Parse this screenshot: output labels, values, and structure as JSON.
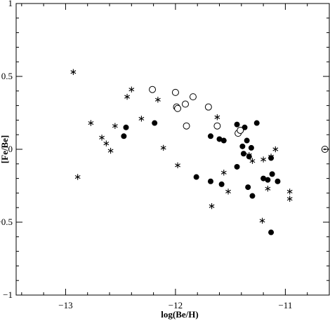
{
  "chart_data": {
    "type": "scatter",
    "title": "",
    "xlabel": "log(Be/H)",
    "ylabel": "[Fe/Be]",
    "xlim": [
      -13.45,
      -10.6
    ],
    "ylim": [
      -1,
      1
    ],
    "x_ticks": [
      {
        "value": -13,
        "label": "−13"
      },
      {
        "value": -12,
        "label": "−12"
      },
      {
        "value": -11,
        "label": "−11"
      }
    ],
    "y_ticks": [
      {
        "value": 1,
        "label": "1"
      },
      {
        "value": 0.5,
        "label": "0.5"
      },
      {
        "value": 0,
        "label": "0"
      },
      {
        "value": -0.5,
        "label": "−0.5"
      },
      {
        "value": -1,
        "label": "−1"
      }
    ],
    "grid": false,
    "series": [
      {
        "marker": "asterisk",
        "points": [
          {
            "x": -12.93,
            "y": 0.53
          },
          {
            "x": -12.4,
            "y": 0.41
          },
          {
            "x": -12.44,
            "y": 0.36
          },
          {
            "x": -12.16,
            "y": 0.34
          },
          {
            "x": -12.77,
            "y": 0.18
          },
          {
            "x": -12.31,
            "y": 0.21
          },
          {
            "x": -12.55,
            "y": 0.16
          },
          {
            "x": -12.67,
            "y": 0.08
          },
          {
            "x": -12.63,
            "y": 0.04
          },
          {
            "x": -12.59,
            "y": -0.01
          },
          {
            "x": -12.11,
            "y": 0.01
          },
          {
            "x": -12.89,
            "y": -0.19
          },
          {
            "x": -11.98,
            "y": -0.11
          },
          {
            "x": -11.62,
            "y": 0.22
          },
          {
            "x": -11.56,
            "y": -0.16
          },
          {
            "x": -11.52,
            "y": -0.29
          },
          {
            "x": -11.67,
            "y": -0.39
          },
          {
            "x": -11.33,
            "y": -0.04
          },
          {
            "x": -11.3,
            "y": -0.08
          },
          {
            "x": -11.2,
            "y": -0.07
          },
          {
            "x": -11.13,
            "y": -0.05
          },
          {
            "x": -11.09,
            "y": 0.0
          },
          {
            "x": -11.16,
            "y": -0.27
          },
          {
            "x": -11.21,
            "y": -0.49
          },
          {
            "x": -10.96,
            "y": -0.29
          },
          {
            "x": -10.96,
            "y": -0.34
          }
        ]
      },
      {
        "marker": "filled-circle",
        "points": [
          {
            "x": -12.45,
            "y": 0.15
          },
          {
            "x": -12.19,
            "y": 0.18
          },
          {
            "x": -12.47,
            "y": 0.09
          },
          {
            "x": -11.68,
            "y": 0.09
          },
          {
            "x": -11.6,
            "y": 0.07
          },
          {
            "x": -11.56,
            "y": 0.06
          },
          {
            "x": -11.44,
            "y": 0.17
          },
          {
            "x": -11.41,
            "y": 0.13
          },
          {
            "x": -11.37,
            "y": 0.15
          },
          {
            "x": -11.26,
            "y": 0.18
          },
          {
            "x": -11.35,
            "y": 0.06
          },
          {
            "x": -11.39,
            "y": 0.02
          },
          {
            "x": -11.31,
            "y": 0.01
          },
          {
            "x": -11.38,
            "y": -0.03
          },
          {
            "x": -11.33,
            "y": -0.05
          },
          {
            "x": -11.13,
            "y": -0.06
          },
          {
            "x": -11.44,
            "y": -0.12
          },
          {
            "x": -11.81,
            "y": -0.19
          },
          {
            "x": -11.68,
            "y": -0.22
          },
          {
            "x": -11.58,
            "y": -0.24
          },
          {
            "x": -11.34,
            "y": -0.26
          },
          {
            "x": -11.3,
            "y": -0.32
          },
          {
            "x": -11.2,
            "y": -0.2
          },
          {
            "x": -11.16,
            "y": -0.21
          },
          {
            "x": -11.12,
            "y": -0.17
          },
          {
            "x": -11.07,
            "y": -0.22
          },
          {
            "x": -11.13,
            "y": -0.57
          }
        ]
      },
      {
        "marker": "open-circle",
        "points": [
          {
            "x": -12.21,
            "y": 0.41
          },
          {
            "x": -12.0,
            "y": 0.39
          },
          {
            "x": -11.84,
            "y": 0.36
          },
          {
            "x": -11.91,
            "y": 0.31
          },
          {
            "x": -11.99,
            "y": 0.29
          },
          {
            "x": -11.98,
            "y": 0.28
          },
          {
            "x": -11.7,
            "y": 0.29
          },
          {
            "x": -11.9,
            "y": 0.16
          },
          {
            "x": -11.62,
            "y": 0.16
          },
          {
            "x": -11.43,
            "y": 0.11
          },
          {
            "x": -11.41,
            "y": 0.13
          }
        ]
      },
      {
        "marker": "sun",
        "points": [
          {
            "x": -10.64,
            "y": 0.0
          }
        ]
      }
    ]
  }
}
